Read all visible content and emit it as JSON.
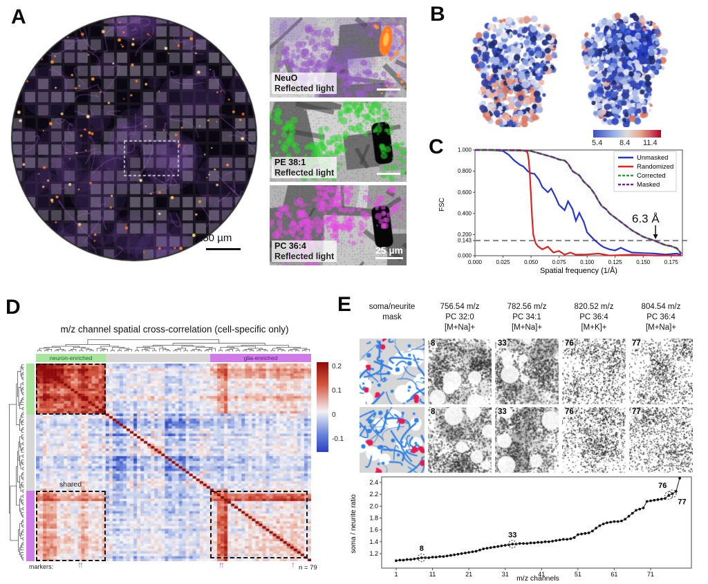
{
  "panels": {
    "a": "A",
    "b": "B",
    "c": "C",
    "d": "D",
    "e": "E"
  },
  "panel_a": {
    "scale_bar_main": "250 µm",
    "insets": [
      {
        "marker": "NeuO",
        "marker_color": "#f4512c",
        "base_label": "Reflected light",
        "overlay_color": "#9a5fc8",
        "accent_color": "#ff8a2c"
      },
      {
        "marker": "PE 38:1",
        "marker_color": "#21c421",
        "base_label": "Reflected light",
        "overlay_color": "#2ed42e"
      },
      {
        "marker": "PC 36:4",
        "marker_color": "#e052e0",
        "base_label": "Reflected light",
        "overlay_color": "#e44fe4",
        "scale_bar": "25 µm"
      }
    ]
  },
  "panel_b": {
    "colorbar_ticks": [
      "5.4",
      "8.4",
      "11.4"
    ],
    "map_colors": {
      "low": "#3b4cc0",
      "mid": "#dddcdc",
      "high": "#b40426"
    }
  },
  "chart_data": [
    {
      "id": "fsc_curve",
      "type": "line",
      "xlabel": "Spatial frequency (1/Å)",
      "ylabel": "FSC",
      "xlim": [
        0,
        0.185
      ],
      "ylim": [
        0,
        1.0
      ],
      "xticks": [
        "0.000",
        "0.025",
        "0.050",
        "0.075",
        "0.100",
        "0.125",
        "0.150",
        "0.175"
      ],
      "yticks": [
        "0.000",
        "0.143",
        "0.200",
        "0.400",
        "0.600",
        "0.800",
        "1.000"
      ],
      "threshold": 0.143,
      "annotation": "6.3 Å",
      "annotation_x": 0.161,
      "legend_position": "upper right",
      "series": [
        {
          "name": "Unmasked",
          "color": "#2433d6",
          "dash": "solid",
          "points": [
            [
              0,
              1
            ],
            [
              0.01,
              1
            ],
            [
              0.02,
              0.995
            ],
            [
              0.025,
              0.99
            ],
            [
              0.03,
              0.955
            ],
            [
              0.035,
              0.9
            ],
            [
              0.04,
              0.86
            ],
            [
              0.043,
              0.845
            ],
            [
              0.047,
              0.8
            ],
            [
              0.05,
              0.78
            ],
            [
              0.053,
              0.775
            ],
            [
              0.057,
              0.72
            ],
            [
              0.06,
              0.65
            ],
            [
              0.065,
              0.6
            ],
            [
              0.068,
              0.635
            ],
            [
              0.072,
              0.55
            ],
            [
              0.075,
              0.48
            ],
            [
              0.08,
              0.43
            ],
            [
              0.083,
              0.515
            ],
            [
              0.087,
              0.44
            ],
            [
              0.09,
              0.33
            ],
            [
              0.093,
              0.405
            ],
            [
              0.097,
              0.32
            ],
            [
              0.1,
              0.22
            ],
            [
              0.105,
              0.165
            ],
            [
              0.108,
              0.135
            ],
            [
              0.112,
              0.1
            ],
            [
              0.115,
              0.08
            ],
            [
              0.12,
              0.06
            ],
            [
              0.125,
              0.05
            ],
            [
              0.13,
              0.075
            ],
            [
              0.135,
              0.05
            ],
            [
              0.14,
              0.03
            ],
            [
              0.15,
              0.025
            ],
            [
              0.16,
              0.02
            ],
            [
              0.17,
              0.012
            ],
            [
              0.18,
              0.02
            ],
            [
              0.184,
              0.01
            ]
          ]
        },
        {
          "name": "Randomized",
          "color": "#e51e1e",
          "dash": "solid",
          "points": [
            [
              0,
              1
            ],
            [
              0.02,
              1
            ],
            [
              0.04,
              1
            ],
            [
              0.045,
              0.995
            ],
            [
              0.047,
              0.97
            ],
            [
              0.048,
              0.9
            ],
            [
              0.049,
              0.75
            ],
            [
              0.05,
              0.55
            ],
            [
              0.051,
              0.35
            ],
            [
              0.052,
              0.2
            ],
            [
              0.054,
              0.12
            ],
            [
              0.056,
              0.09
            ],
            [
              0.06,
              0.06
            ],
            [
              0.065,
              0.085
            ],
            [
              0.068,
              0.05
            ],
            [
              0.07,
              0.03
            ],
            [
              0.075,
              0.045
            ],
            [
              0.08,
              0.01
            ],
            [
              0.085,
              0.03
            ],
            [
              0.09,
              0.01
            ],
            [
              0.1,
              0.012
            ],
            [
              0.11,
              0.02
            ],
            [
              0.12,
              0.002
            ],
            [
              0.14,
              0.01
            ],
            [
              0.16,
              0.002
            ],
            [
              0.184,
              0.002
            ]
          ]
        },
        {
          "name": "Corrected",
          "color": "#2f9e2f",
          "dash": "dashed",
          "same_as": "Masked"
        },
        {
          "name": "Masked",
          "color": "#7a1e94",
          "dash": "dashed",
          "points": [
            [
              0,
              1
            ],
            [
              0.02,
              1
            ],
            [
              0.04,
              0.995
            ],
            [
              0.05,
              0.99
            ],
            [
              0.055,
              0.975
            ],
            [
              0.06,
              0.96
            ],
            [
              0.065,
              0.945
            ],
            [
              0.07,
              0.93
            ],
            [
              0.075,
              0.91
            ],
            [
              0.08,
              0.9
            ],
            [
              0.083,
              0.87
            ],
            [
              0.087,
              0.8
            ],
            [
              0.09,
              0.78
            ],
            [
              0.093,
              0.76
            ],
            [
              0.097,
              0.7
            ],
            [
              0.1,
              0.67
            ],
            [
              0.103,
              0.64
            ],
            [
              0.107,
              0.58
            ],
            [
              0.11,
              0.52
            ],
            [
              0.113,
              0.47
            ],
            [
              0.117,
              0.44
            ],
            [
              0.12,
              0.4
            ],
            [
              0.125,
              0.36
            ],
            [
              0.13,
              0.32
            ],
            [
              0.135,
              0.28
            ],
            [
              0.14,
              0.24
            ],
            [
              0.145,
              0.21
            ],
            [
              0.15,
              0.18
            ],
            [
              0.155,
              0.16
            ],
            [
              0.16,
              0.143
            ],
            [
              0.165,
              0.12
            ],
            [
              0.17,
              0.1
            ],
            [
              0.175,
              0.09
            ],
            [
              0.18,
              0.07
            ],
            [
              0.184,
              0.02
            ]
          ]
        }
      ]
    },
    {
      "id": "mz_crosscorr_heatmap",
      "type": "heatmap",
      "title": "m/z channel spatial cross-correlation (cell-specific only)",
      "n_channels": 79,
      "n_label": "n = 79",
      "markers_label": "markers:",
      "shared_label": "shared",
      "colorbar_ticks": [
        "0.2",
        "0.1",
        "0",
        "-0.1"
      ],
      "col_groups": [
        {
          "label": "neuron-enriched",
          "color": "#abe3a0",
          "text_color": "#1d6b1d",
          "span": [
            0,
            20
          ]
        },
        {
          "label": "",
          "color": "#d6d6d6",
          "text_color": "#444",
          "span": [
            20,
            50
          ]
        },
        {
          "label": "glia-enriched",
          "color": "#cf7ce8",
          "text_color": "#5a1a78",
          "span": [
            50,
            79
          ]
        }
      ],
      "row_groups": [
        {
          "label": "neuron-enriched",
          "color": "#abe3a0",
          "span": [
            0,
            20
          ]
        },
        {
          "label": "shared",
          "color": "#d6d6d6",
          "span": [
            20,
            51
          ]
        },
        {
          "label": "glia-enriched",
          "color": "#cf7ce8",
          "span": [
            51,
            79
          ]
        }
      ],
      "marker_arrows": {
        "green": "↑↑",
        "purple_double": "↑↑",
        "purple_single": "↑"
      },
      "value_range": [
        -0.15,
        0.22
      ]
    },
    {
      "id": "soma_neurite_ratio",
      "type": "scatter",
      "xlabel": "m/z channels",
      "ylabel": "soma / neurite ratio",
      "xticks": [
        1,
        11,
        21,
        31,
        41,
        51,
        61,
        71
      ],
      "yticks": [
        1.2,
        1.4,
        1.6,
        1.8,
        2.0,
        2.2,
        2.4
      ],
      "values": [
        1.08,
        1.09,
        1.09,
        1.1,
        1.1,
        1.11,
        1.12,
        1.13,
        1.13,
        1.13,
        1.14,
        1.14,
        1.15,
        1.15,
        1.16,
        1.17,
        1.18,
        1.19,
        1.2,
        1.21,
        1.22,
        1.23,
        1.24,
        1.26,
        1.28,
        1.29,
        1.3,
        1.31,
        1.32,
        1.33,
        1.34,
        1.35,
        1.36,
        1.36,
        1.37,
        1.37,
        1.37,
        1.38,
        1.38,
        1.39,
        1.39,
        1.4,
        1.4,
        1.41,
        1.42,
        1.43,
        1.44,
        1.44,
        1.45,
        1.47,
        1.52,
        1.53,
        1.54,
        1.55,
        1.58,
        1.63,
        1.67,
        1.7,
        1.72,
        1.73,
        1.74,
        1.74,
        1.75,
        1.78,
        1.83,
        1.88,
        1.93,
        1.95,
        1.97,
        2.08,
        2.09,
        2.1,
        2.11,
        2.12,
        2.13,
        2.18,
        2.21,
        2.25,
        2.47
      ],
      "highlighted_channels": [
        "8",
        "33",
        "76",
        "77"
      ]
    }
  ],
  "panel_e": {
    "columns": [
      {
        "lines": [
          "soma/neurite",
          "mask"
        ]
      },
      {
        "lines": [
          "756.54 m/z",
          "PC 32:0",
          "[M+Na]+"
        ]
      },
      {
        "lines": [
          "782.56 m/z",
          "PC 34:1",
          "[M+Na]+"
        ]
      },
      {
        "lines": [
          "820.52 m/z",
          "PC 36:4",
          "[M+K]+"
        ]
      },
      {
        "lines": [
          "804.54 m/z",
          "PC 36:4",
          "[M+Na]+"
        ]
      }
    ],
    "image_numbers": [
      "8",
      "33",
      "76",
      "77"
    ]
  }
}
